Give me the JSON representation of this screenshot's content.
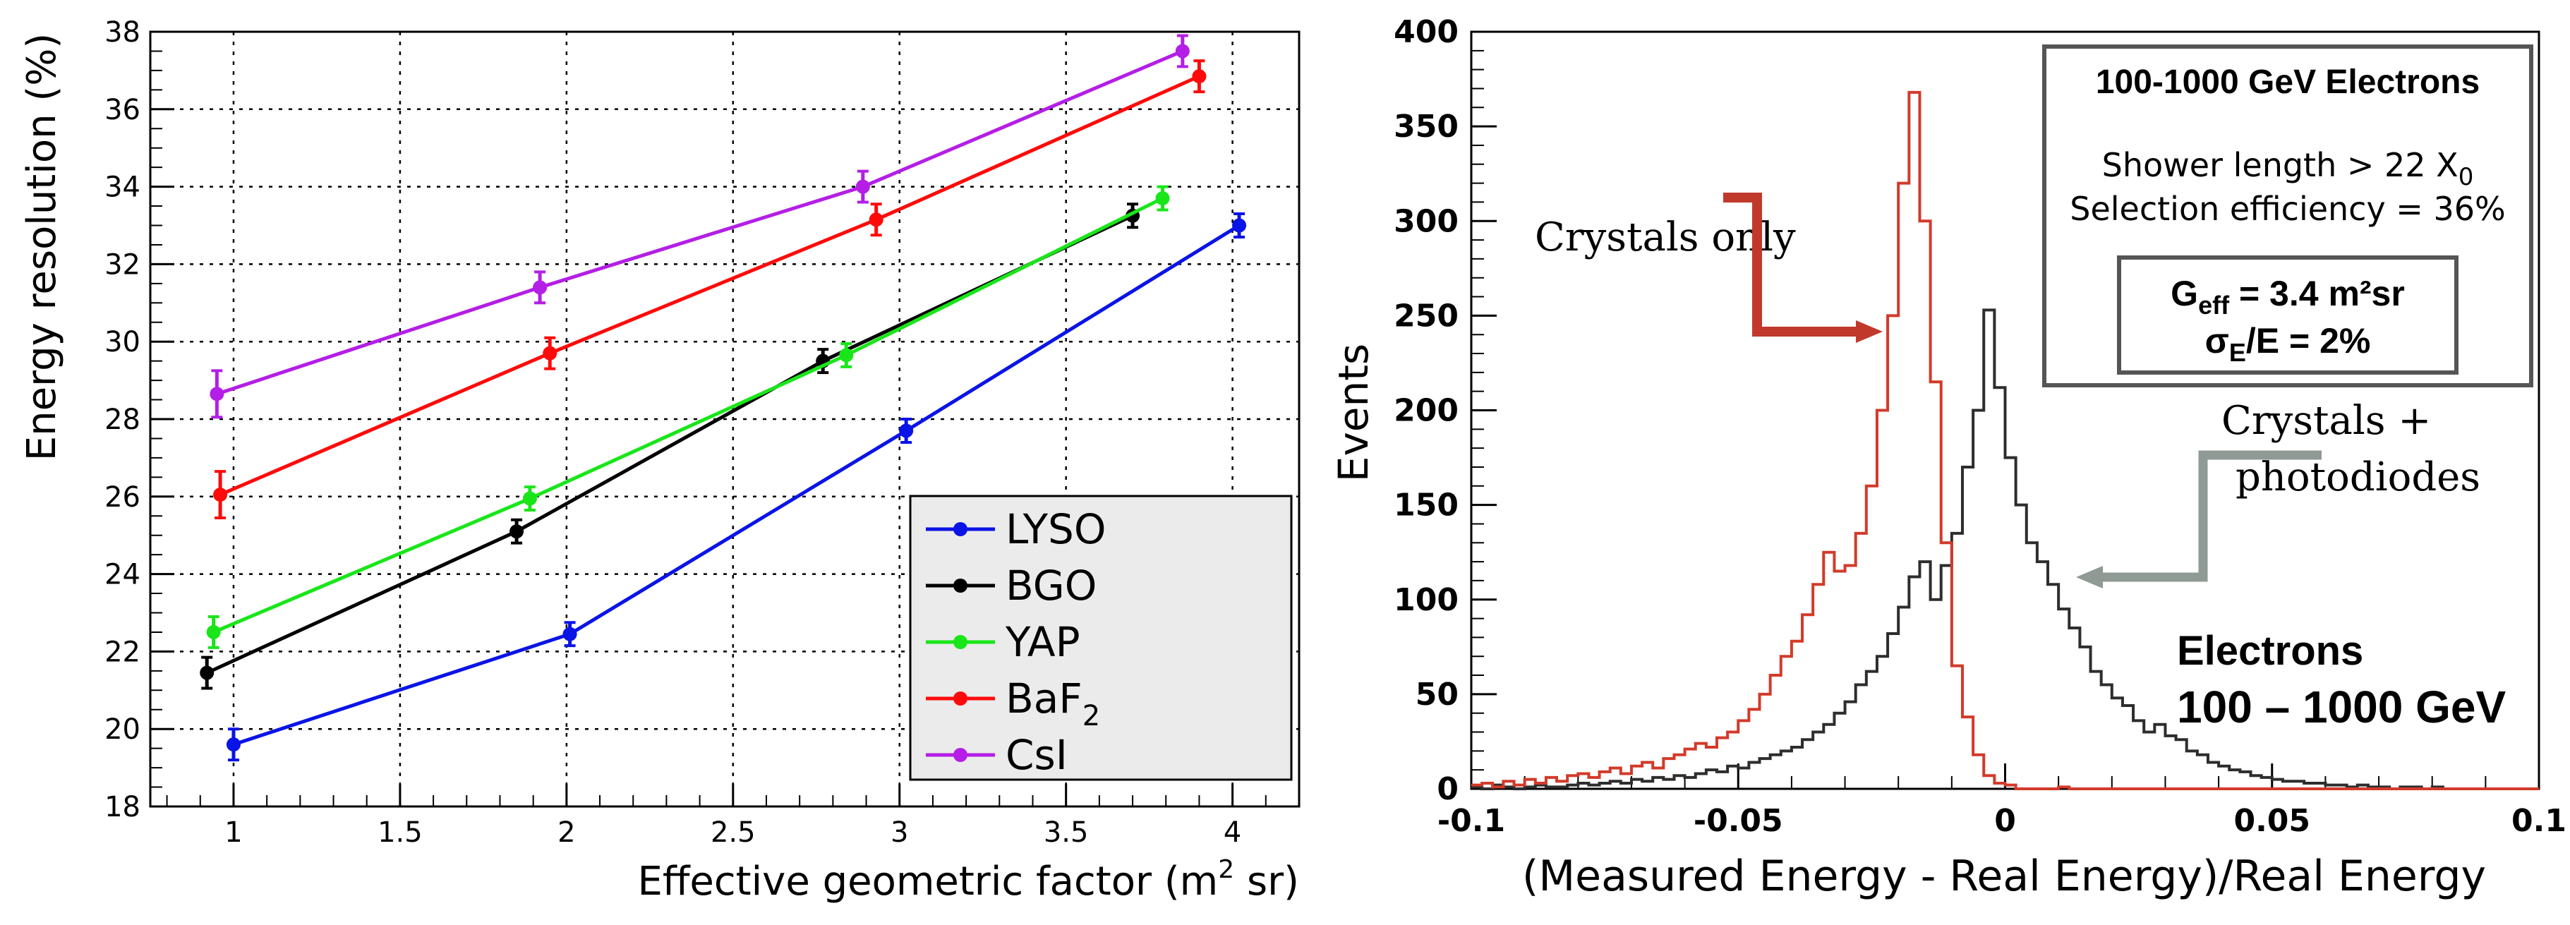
{
  "chart_data": [
    {
      "type": "line",
      "xlabel": "Effective geometric factor (m",
      "xlabel_sup": "2",
      "xlabel_end": " sr)",
      "ylabel": "Energy resolution (%)",
      "xlim": [
        0.75,
        4.2
      ],
      "ylim": [
        18,
        38
      ],
      "x_ticks": [
        1,
        1.5,
        2,
        2.5,
        3,
        3.5,
        4
      ],
      "x_tick_labels": [
        "1",
        "1.5",
        "2",
        "2.5",
        "3",
        "3.5",
        "4"
      ],
      "y_ticks": [
        18,
        20,
        22,
        24,
        26,
        28,
        30,
        32,
        34,
        36,
        38
      ],
      "y_tick_labels": [
        "18",
        "20",
        "22",
        "24",
        "26",
        "28",
        "30",
        "32",
        "34",
        "36",
        "38"
      ],
      "grid": true,
      "legend_position": "bottom-right",
      "series": [
        {
          "name": "LYSO",
          "color": "#0a14e6",
          "x": [
            1.0,
            2.01,
            3.02,
            4.02
          ],
          "y": [
            19.6,
            22.45,
            27.7,
            33.0
          ],
          "err": [
            0.4,
            0.3,
            0.3,
            0.3
          ]
        },
        {
          "name": "BGO",
          "color": "#000000",
          "x": [
            0.92,
            1.85,
            2.77,
            3.7
          ],
          "y": [
            21.45,
            25.1,
            29.5,
            33.25
          ],
          "err": [
            0.4,
            0.3,
            0.3,
            0.3
          ]
        },
        {
          "name": "YAP",
          "color": "#19e619",
          "x": [
            0.94,
            1.89,
            2.84,
            3.79
          ],
          "y": [
            22.5,
            25.95,
            29.65,
            33.7
          ],
          "err": [
            0.4,
            0.3,
            0.3,
            0.3
          ]
        },
        {
          "name": "BaF",
          "subscript": "2",
          "color": "#ff0a0a",
          "x": [
            0.96,
            1.95,
            2.93,
            3.9
          ],
          "y": [
            26.05,
            29.7,
            33.15,
            36.85
          ],
          "err": [
            0.6,
            0.4,
            0.4,
            0.4
          ]
        },
        {
          "name": "CsI",
          "color": "#b41ee6",
          "x": [
            0.95,
            1.92,
            2.89,
            3.85
          ],
          "y": [
            28.65,
            31.4,
            34.0,
            37.5
          ],
          "err": [
            0.6,
            0.4,
            0.4,
            0.4
          ]
        }
      ]
    },
    {
      "type": "histogram",
      "xlabel": "(Measured Energy - Real Energy)/Real Energy",
      "ylabel": "Events",
      "xlim": [
        -0.1,
        0.1
      ],
      "ylim": [
        0,
        400
      ],
      "x_ticks": [
        -0.1,
        -0.05,
        0,
        0.05,
        0.1
      ],
      "x_tick_labels": [
        "-0.1",
        "-0.05",
        "0",
        "0.05",
        "0.1"
      ],
      "y_ticks": [
        0,
        50,
        100,
        150,
        200,
        250,
        300,
        350,
        400
      ],
      "y_tick_labels": [
        "0",
        "50",
        "100",
        "150",
        "200",
        "250",
        "300",
        "350",
        "400"
      ],
      "bin_start": -0.1,
      "bin_width": 0.002,
      "series": [
        {
          "name": "Crystals only",
          "color": "#d23a2a",
          "values": [
            2,
            3,
            1,
            4,
            2,
            5,
            3,
            6,
            4,
            7,
            8,
            6,
            9,
            11,
            8,
            12,
            14,
            11,
            16,
            18,
            21,
            24,
            22,
            27,
            30,
            36,
            42,
            50,
            60,
            70,
            78,
            92,
            108,
            125,
            115,
            118,
            135,
            160,
            200,
            250,
            320,
            368,
            300,
            215,
            130,
            65,
            38,
            18,
            7,
            3,
            2,
            0,
            0,
            0,
            0,
            1,
            0,
            0,
            0,
            0,
            0,
            0,
            0,
            0,
            0,
            0,
            0,
            0,
            0,
            0,
            0,
            0,
            0,
            0,
            0,
            0,
            0,
            0,
            0,
            0,
            0,
            0,
            0,
            0,
            0,
            0,
            0,
            0,
            0,
            0,
            0,
            0,
            0,
            0,
            0,
            0,
            0,
            0,
            0,
            0
          ]
        },
        {
          "name": "Crystals + photodiodes",
          "color": "#2d2d2d",
          "values": [
            1,
            0,
            2,
            1,
            0,
            1,
            2,
            1,
            1,
            2,
            3,
            2,
            3,
            4,
            3,
            5,
            4,
            6,
            5,
            7,
            6,
            8,
            10,
            9,
            12,
            11,
            14,
            16,
            18,
            20,
            22,
            26,
            30,
            34,
            40,
            46,
            55,
            62,
            70,
            82,
            96,
            112,
            120,
            100,
            118,
            135,
            170,
            200,
            253,
            212,
            175,
            150,
            130,
            120,
            108,
            95,
            85,
            75,
            62,
            55,
            48,
            44,
            36,
            30,
            34,
            28,
            26,
            20,
            18,
            14,
            12,
            10,
            9,
            7,
            6,
            5,
            4,
            4,
            3,
            3,
            2,
            2,
            1,
            2,
            1,
            1,
            0,
            1,
            1,
            0,
            1,
            0,
            0,
            0,
            0,
            0,
            0,
            0,
            0,
            0
          ]
        }
      ],
      "annotations": {
        "crystals_only": "Crystals only",
        "crystals_plus_line1": "Crystals +",
        "crystals_plus_line2": "photodiodes",
        "electrons_line1": "Electrons",
        "electrons_line2": "100 – 1000 GeV"
      },
      "info_box": {
        "title": "100-1000 GeV Electrons",
        "line1_prefix": "Shower length > 22 X",
        "line1_sub": "0",
        "line2": "Selection efficiency = 36%",
        "geff_prefix": "G",
        "geff_sub": "eff",
        "geff_value": " = 3.4 m²sr",
        "sigma_prefix": "σ",
        "sigma_sub": "E",
        "sigma_value": "/E = 2%"
      }
    }
  ]
}
